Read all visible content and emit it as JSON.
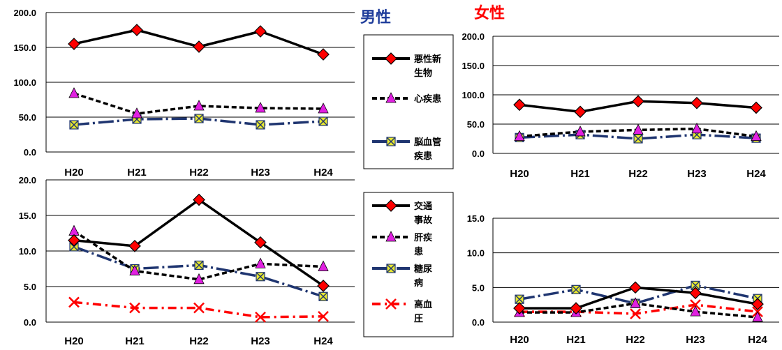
{
  "titles": {
    "male": "男性",
    "female": "女性"
  },
  "legend_top": [
    {
      "label_lines": [
        "悪性新",
        "生物"
      ],
      "color": "#000000",
      "dash": "",
      "marker": "diamond"
    },
    {
      "label_lines": [
        "心疾患"
      ],
      "color": "#000000",
      "dash": "7,4",
      "marker": "triangle"
    },
    {
      "label_lines": [
        "脳血管",
        "疾患"
      ],
      "color": "#1f3570",
      "dash": "22,5,3,5",
      "marker": "xbox"
    }
  ],
  "legend_bottom": [
    {
      "label_lines": [
        "交通",
        "事故"
      ],
      "color": "#000000",
      "dash": "",
      "marker": "diamond"
    },
    {
      "label_lines": [
        "肝疾",
        "患"
      ],
      "color": "#000000",
      "dash": "7,4",
      "marker": "triangle"
    },
    {
      "label_lines": [
        "糖尿",
        "病"
      ],
      "color": "#1f3570",
      "dash": "22,5,3,5",
      "marker": "xbox"
    },
    {
      "label_lines": [
        "高血",
        "圧"
      ],
      "color": "#ff0000",
      "dash": "12,6,3,6",
      "marker": "x"
    }
  ],
  "chart_data": [
    {
      "id": "male-top",
      "type": "line",
      "title": "男性",
      "categories": [
        "H20",
        "H21",
        "H22",
        "H23",
        "H24"
      ],
      "ylim": [
        0,
        200
      ],
      "yticks": [
        "0.0",
        "50.0",
        "100.0",
        "150.0",
        "200.0"
      ],
      "grid": true,
      "series": [
        {
          "name": "悪性新生物",
          "values": [
            155,
            175,
            151,
            173,
            140
          ],
          "color": "#000000",
          "dash": "",
          "marker": "diamond"
        },
        {
          "name": "心疾患",
          "values": [
            84,
            55,
            66,
            63,
            62
          ],
          "color": "#000000",
          "dash": "7,4",
          "marker": "triangle"
        },
        {
          "name": "脳血管疾患",
          "values": [
            39,
            47,
            48,
            39,
            44
          ],
          "color": "#1f3570",
          "dash": "22,5,3,5",
          "marker": "xbox"
        }
      ]
    },
    {
      "id": "female-top",
      "type": "line",
      "title": "女性",
      "categories": [
        "H20",
        "H21",
        "H22",
        "H23",
        "H24"
      ],
      "ylim": [
        0,
        200
      ],
      "yticks": [
        "0.0",
        "50.0",
        "100.0",
        "150.0",
        "200.0"
      ],
      "grid": true,
      "series": [
        {
          "name": "悪性新生物",
          "values": [
            83,
            71,
            89,
            86,
            78
          ],
          "color": "#000000",
          "dash": "",
          "marker": "diamond"
        },
        {
          "name": "心疾患",
          "values": [
            29,
            37,
            40,
            42,
            29
          ],
          "color": "#000000",
          "dash": "7,4",
          "marker": "triangle"
        },
        {
          "name": "脳血管疾患",
          "values": [
            27,
            32,
            25,
            32,
            26
          ],
          "color": "#1f3570",
          "dash": "22,5,3,5",
          "marker": "xbox"
        }
      ]
    },
    {
      "id": "male-bottom",
      "type": "line",
      "categories": [
        "H20",
        "H21",
        "H22",
        "H23",
        "H24"
      ],
      "ylim": [
        0,
        20
      ],
      "yticks": [
        "0.0",
        "5.0",
        "10.0",
        "15.0",
        "20.0"
      ],
      "grid": true,
      "series": [
        {
          "name": "交通事故",
          "values": [
            11.5,
            10.7,
            17.2,
            11.2,
            5.1
          ],
          "color": "#000000",
          "dash": "",
          "marker": "diamond"
        },
        {
          "name": "肝疾患",
          "values": [
            12.8,
            7.2,
            6.0,
            8.2,
            7.8
          ],
          "color": "#000000",
          "dash": "7,4",
          "marker": "triangle"
        },
        {
          "name": "糖尿病",
          "values": [
            10.6,
            7.5,
            8.0,
            6.4,
            3.6
          ],
          "color": "#1f3570",
          "dash": "22,5,3,5",
          "marker": "xbox"
        },
        {
          "name": "高血圧",
          "values": [
            2.8,
            2.0,
            2.0,
            0.7,
            0.8
          ],
          "color": "#ff0000",
          "dash": "12,6,3,6",
          "marker": "x"
        }
      ]
    },
    {
      "id": "female-bottom",
      "type": "line",
      "categories": [
        "H20",
        "H21",
        "H22",
        "H23",
        "H24"
      ],
      "ylim": [
        0,
        15
      ],
      "yticks": [
        "0.0",
        "5.0",
        "10.0",
        "15.0"
      ],
      "grid": true,
      "series": [
        {
          "name": "交通事故",
          "values": [
            2.0,
            2.0,
            5.0,
            4.2,
            2.6
          ],
          "color": "#000000",
          "dash": "",
          "marker": "diamond"
        },
        {
          "name": "肝疾患",
          "values": [
            1.4,
            1.4,
            2.7,
            1.5,
            0.7
          ],
          "color": "#000000",
          "dash": "7,4",
          "marker": "triangle"
        },
        {
          "name": "糖尿病",
          "values": [
            3.3,
            4.7,
            2.7,
            5.3,
            3.4
          ],
          "color": "#1f3570",
          "dash": "22,5,3,5",
          "marker": "xbox"
        },
        {
          "name": "高血圧",
          "values": [
            1.5,
            1.5,
            1.2,
            2.5,
            1.5
          ],
          "color": "#ff0000",
          "dash": "12,6,3,6",
          "marker": "x"
        }
      ]
    }
  ]
}
